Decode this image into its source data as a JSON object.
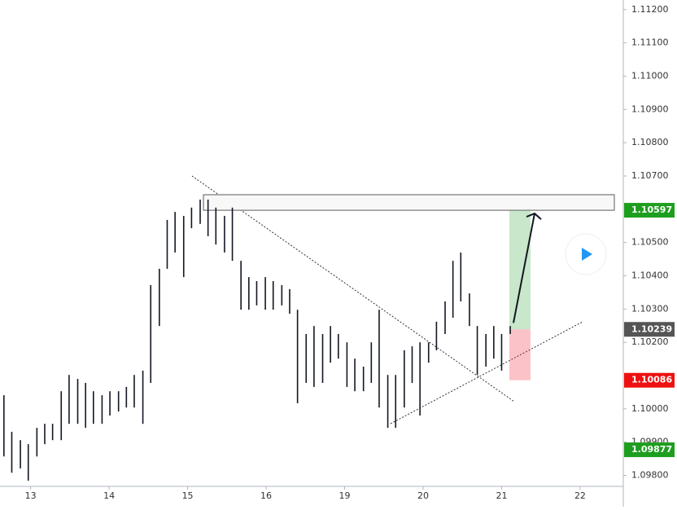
{
  "chart_data": {
    "type": "ohlc",
    "x": [
      -0.34,
      -0.24,
      -0.13,
      -0.03,
      0.08,
      0.18,
      0.28,
      0.39,
      0.49,
      0.6,
      0.7,
      0.8,
      0.91,
      1.01,
      1.12,
      1.22,
      1.32,
      1.43,
      1.53,
      1.64,
      1.74,
      1.84,
      1.95,
      2.05,
      2.16,
      2.26,
      2.36,
      2.47,
      2.57,
      2.68,
      2.78,
      2.88,
      2.99,
      3.09,
      3.2,
      3.3,
      3.4,
      3.51,
      3.61,
      3.72,
      3.82,
      3.92,
      4.03,
      4.13,
      4.24,
      4.34,
      4.44,
      4.55,
      4.65,
      4.76,
      4.86,
      4.96,
      5.07,
      5.17,
      5.28,
      5.38,
      5.48,
      5.59,
      5.69,
      5.8,
      5.9,
      6.0,
      6.11
    ],
    "high": [
      1.10041,
      1.09931,
      1.09906,
      1.09894,
      1.09943,
      1.09955,
      1.09955,
      1.10053,
      1.10102,
      1.1009,
      1.10078,
      1.10053,
      1.10041,
      1.10053,
      1.10053,
      1.10066,
      1.10102,
      1.10115,
      1.10372,
      1.10421,
      1.10568,
      1.10592,
      1.1058,
      1.10605,
      1.10629,
      1.10629,
      1.10605,
      1.1058,
      1.10605,
      1.10445,
      1.10396,
      1.10384,
      1.10396,
      1.10384,
      1.10372,
      1.1036,
      1.10298,
      1.10225,
      1.10249,
      1.10225,
      1.10249,
      1.10225,
      1.102,
      1.10151,
      1.10127,
      1.102,
      1.10298,
      1.10102,
      1.10102,
      1.10176,
      1.10188,
      1.102,
      1.102,
      1.10262,
      1.10323,
      1.10445,
      1.1047,
      1.10347,
      1.10249,
      1.10225,
      1.10249,
      1.10225,
      1.10249
    ],
    "low": [
      1.09857,
      1.09808,
      1.09821,
      1.09784,
      1.09857,
      1.09894,
      1.09906,
      1.09906,
      1.09955,
      1.09955,
      1.09943,
      1.09955,
      1.09955,
      1.0998,
      1.09992,
      1.10004,
      1.10004,
      1.09955,
      1.10078,
      1.10249,
      1.10421,
      1.1047,
      1.10396,
      1.10543,
      1.10556,
      1.10519,
      1.10494,
      1.1047,
      1.10445,
      1.10298,
      1.10298,
      1.10311,
      1.10298,
      1.10298,
      1.10311,
      1.10286,
      1.10017,
      1.10078,
      1.10066,
      1.10078,
      1.10139,
      1.10151,
      1.10066,
      1.10053,
      1.10053,
      1.10078,
      1.10004,
      1.09943,
      1.09943,
      1.10004,
      1.10078,
      1.0998,
      1.10139,
      1.10176,
      1.10225,
      1.10274,
      1.10323,
      1.10249,
      1.10102,
      1.10127,
      1.10151,
      1.10115,
      1.10225
    ],
    "color": "#131722",
    "xlim": [
      -0.39,
      7.55
    ],
    "xticks": [
      {
        "value": 0,
        "label": "13"
      },
      {
        "value": 1,
        "label": "14"
      },
      {
        "value": 2,
        "label": "15"
      },
      {
        "value": 3,
        "label": "16"
      },
      {
        "value": 4,
        "label": "19"
      },
      {
        "value": 5,
        "label": "20"
      },
      {
        "value": 6,
        "label": "21"
      },
      {
        "value": 7,
        "label": "22"
      }
    ],
    "ylim": [
      1.09767,
      1.11229
    ],
    "yticks": [
      {
        "value": 1.112,
        "label": "1.11200"
      },
      {
        "value": 1.111,
        "label": "1.11100"
      },
      {
        "value": 1.11,
        "label": "1.11000"
      },
      {
        "value": 1.109,
        "label": "1.10900"
      },
      {
        "value": 1.108,
        "label": "1.10800"
      },
      {
        "value": 1.107,
        "label": "1.10700"
      },
      {
        "value": 1.105,
        "label": "1.10500"
      },
      {
        "value": 1.104,
        "label": "1.10400"
      },
      {
        "value": 1.103,
        "label": "1.10300"
      },
      {
        "value": 1.102,
        "label": "1.10200"
      },
      {
        "value": 1.1,
        "label": "1.10000"
      },
      {
        "value": 1.099,
        "label": "1.09900"
      },
      {
        "value": 1.098,
        "label": "1.09800"
      }
    ],
    "price_tags": [
      {
        "value": 1.10597,
        "color": "#1e9e1e"
      },
      {
        "value": 1.10239,
        "color": "#555555"
      },
      {
        "value": 1.10086,
        "color": "#ee1111"
      },
      {
        "value": 1.09877,
        "color": "#1e9e1e"
      }
    ]
  }
}
